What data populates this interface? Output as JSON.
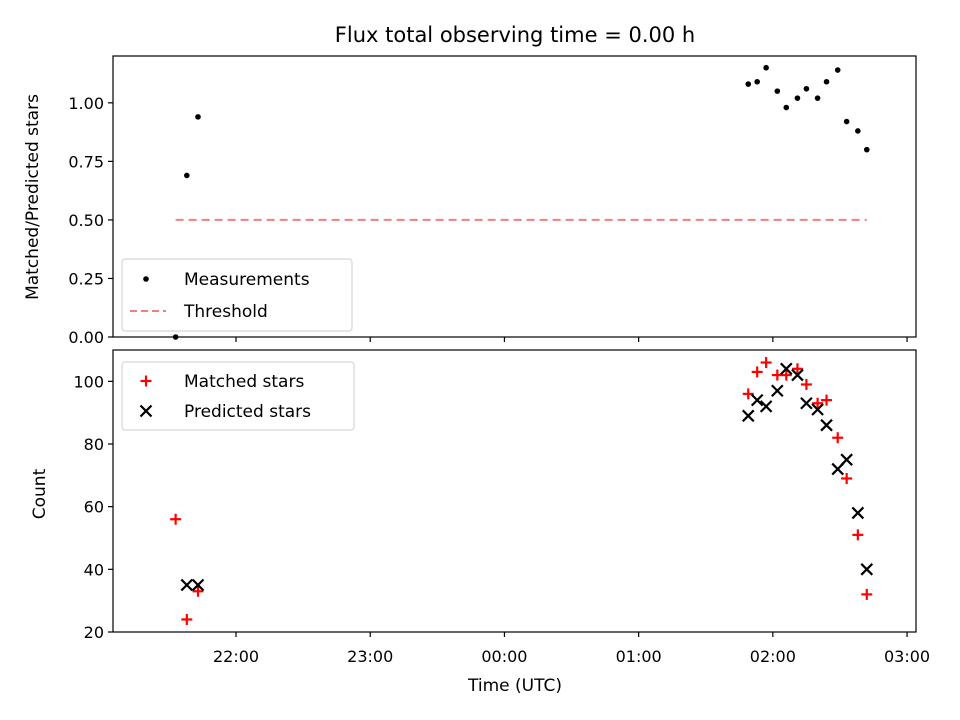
{
  "chart_data": [
    {
      "type": "scatter",
      "title": "Flux total observing time = 0.00 h",
      "xlabel": "",
      "ylabel": "Matched/Predicted stars",
      "ylim": [
        0.0,
        1.2
      ],
      "yticks": [
        "0.00",
        "0.25",
        "0.50",
        "0.75",
        "1.00"
      ],
      "grid": false,
      "legend_position": "lower-left",
      "series": [
        {
          "name": "Measurements",
          "marker": "dot",
          "color": "#000000",
          "x": [
            "21:33",
            "21:38",
            "21:43",
            "01:49",
            "01:53",
            "01:57",
            "02:02",
            "02:06",
            "02:11",
            "02:15",
            "02:20",
            "02:24",
            "02:29",
            "02:33",
            "02:38",
            "02:42"
          ],
          "y": [
            0.0,
            0.69,
            0.94,
            1.08,
            1.09,
            1.15,
            1.05,
            0.98,
            1.02,
            1.06,
            1.02,
            1.09,
            1.14,
            0.92,
            0.88,
            0.8
          ]
        },
        {
          "name": "Threshold",
          "marker": "dashed-line",
          "color": "#f08080",
          "x": [
            "21:33",
            "02:42"
          ],
          "y": [
            0.5,
            0.5
          ]
        }
      ]
    },
    {
      "type": "scatter",
      "title": "",
      "xlabel": "Time (UTC)",
      "ylabel": "Count",
      "ylim": [
        20,
        110
      ],
      "yticks": [
        "20",
        "40",
        "60",
        "80",
        "100"
      ],
      "xticks": [
        "22:00",
        "23:00",
        "00:00",
        "01:00",
        "02:00",
        "03:00"
      ],
      "grid": false,
      "legend_position": "upper-left",
      "series": [
        {
          "name": "Matched stars",
          "marker": "plus",
          "color": "#ff0000",
          "x": [
            "21:33",
            "21:38",
            "21:43",
            "01:49",
            "01:53",
            "01:57",
            "02:02",
            "02:06",
            "02:11",
            "02:15",
            "02:20",
            "02:24",
            "02:29",
            "02:33",
            "02:38",
            "02:42"
          ],
          "y": [
            56,
            24,
            33,
            96,
            103,
            106,
            102,
            102,
            104,
            99,
            93,
            94,
            82,
            69,
            51,
            32
          ]
        },
        {
          "name": "Predicted stars",
          "marker": "x",
          "color": "#000000",
          "x": [
            "21:38",
            "21:43",
            "01:49",
            "01:53",
            "01:57",
            "02:02",
            "02:06",
            "02:11",
            "02:15",
            "02:20",
            "02:24",
            "02:29",
            "02:33",
            "02:38",
            "02:42"
          ],
          "y": [
            35,
            35,
            89,
            94,
            92,
            97,
            104,
            102,
            93,
            91,
            86,
            72,
            75,
            58,
            40
          ]
        }
      ]
    }
  ]
}
